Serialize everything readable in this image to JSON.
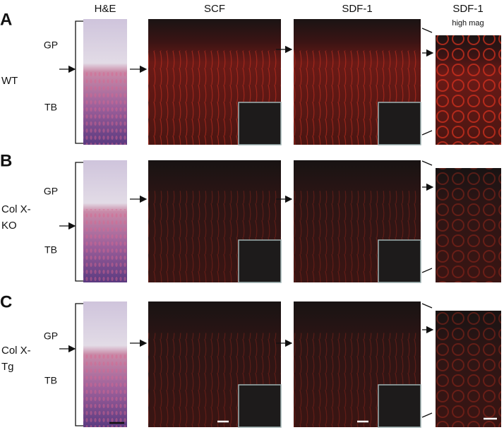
{
  "column_headers": [
    "H&E",
    "SCF",
    "SDF-1"
  ],
  "high_mag": {
    "title": "SDF-1",
    "subtitle": "high mag"
  },
  "rows": [
    {
      "panel": "A",
      "genotype": [
        "WT"
      ],
      "zones": [
        "GP",
        "TB"
      ]
    },
    {
      "panel": "B",
      "genotype": [
        "Col X-",
        "KO"
      ],
      "zones": [
        "GP",
        "TB"
      ]
    },
    {
      "panel": "C",
      "genotype": [
        "Col X-",
        "Tg"
      ],
      "zones": [
        "GP",
        "TB"
      ]
    }
  ]
}
